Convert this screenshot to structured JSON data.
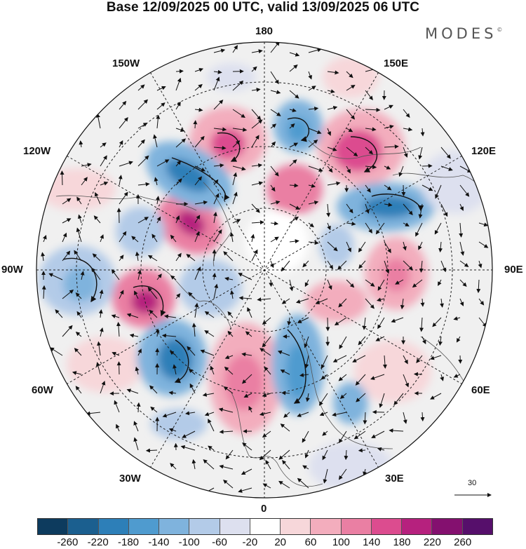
{
  "title": "Base 12/09/2025 00 UTC, valid 13/09/2025 06 UTC",
  "brand": "MODES",
  "brand_mark": "©",
  "longitudes": {
    "top": "180",
    "bottom": "0",
    "left": "90W",
    "right": "90E",
    "upper_left_1": "150W",
    "upper_left_2": "120W",
    "upper_right_1": "150E",
    "upper_right_2": "120E",
    "lower_left_1": "60W",
    "lower_left_2": "30W",
    "lower_right_1": "60E",
    "lower_right_2": "30E"
  },
  "reference_vector_label": "30",
  "colorbar": {
    "ticks": [
      "-260",
      "-220",
      "-180",
      "-140",
      "-100",
      "-60",
      "-20",
      "20",
      "60",
      "100",
      "140",
      "180",
      "220",
      "260"
    ],
    "colors": [
      "#0d3b5e",
      "#1b5f8f",
      "#2d7fb8",
      "#4f9bcf",
      "#7fb3dd",
      "#b3cbe8",
      "#dde0ef",
      "#ffffff",
      "#f7d7da",
      "#f3adbd",
      "#ea7fa3",
      "#dc4c8f",
      "#b6217e",
      "#84106f",
      "#560f6b"
    ]
  }
}
